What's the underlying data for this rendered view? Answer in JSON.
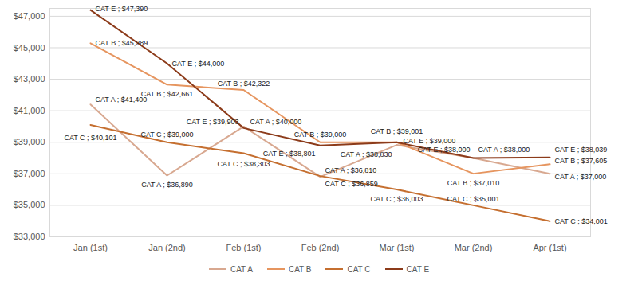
{
  "chart_data": {
    "type": "line",
    "categories": [
      "Jan (1st)",
      "Jan (2nd)",
      "Feb (1st)",
      "Feb (2nd)",
      "Mar (1st)",
      "Mar (2nd)",
      "Apr (1st)"
    ],
    "series": [
      {
        "name": "CAT A",
        "color": "#d8a890",
        "values": [
          41400,
          36890,
          40000,
          36810,
          38830,
          38000,
          37000
        ],
        "value_labels": [
          "CAT A ; $41,400",
          "CAT A ; $36,890",
          "CAT A ; $40,000",
          "CAT A ; $36,810",
          "CAT A ; $38,830",
          "CAT A ; $38,000",
          "CAT A ; $37,000"
        ]
      },
      {
        "name": "CAT B",
        "color": "#e6955f",
        "values": [
          45289,
          42661,
          42322,
          39000,
          39001,
          37010,
          37605
        ],
        "value_labels": [
          "CAT B ; $45,289",
          "CAT B ; $42,661",
          "CAT B ; $42,322",
          "CAT B ; $39,000",
          "CAT B ; $39,001",
          "CAT B ; $37,010",
          "CAT B ; $37,605"
        ]
      },
      {
        "name": "CAT C",
        "color": "#c56f30",
        "values": [
          40101,
          39000,
          38303,
          36859,
          36003,
          35001,
          34001
        ],
        "value_labels": [
          "CAT C ; $40,101",
          "CAT C ; $39,000",
          "CAT C ; $38,303",
          "CAT C ; $36,859",
          "CAT C ; $36,003",
          "CAT C ; $35,001",
          "CAT C ; $34,001"
        ]
      },
      {
        "name": "CAT E",
        "color": "#8c3b1a",
        "values": [
          47390,
          44000,
          39903,
          38801,
          39000,
          38000,
          38039
        ],
        "value_labels": [
          "CAT E ; $47,390",
          "CAT E ; $44,000",
          "CAT E ; $39,903",
          "CAT E ; $38,801",
          "CAT E ; $39,000",
          "CAT E ; $38,000",
          "CAT E ; $38,039"
        ]
      }
    ],
    "ylim": [
      33000,
      47500
    ],
    "yticks": [
      {
        "value": 33000,
        "label": "$33,000"
      },
      {
        "value": 35000,
        "label": "$35,000"
      },
      {
        "value": 37000,
        "label": "$37,000"
      },
      {
        "value": 39000,
        "label": "$39,000"
      },
      {
        "value": 41000,
        "label": "$41,000"
      },
      {
        "value": 43000,
        "label": "$43,000"
      },
      {
        "value": 45000,
        "label": "$45,000"
      },
      {
        "value": 47000,
        "label": "$47,000"
      }
    ],
    "grid": true,
    "data_labels": true,
    "legend": "bottom"
  }
}
